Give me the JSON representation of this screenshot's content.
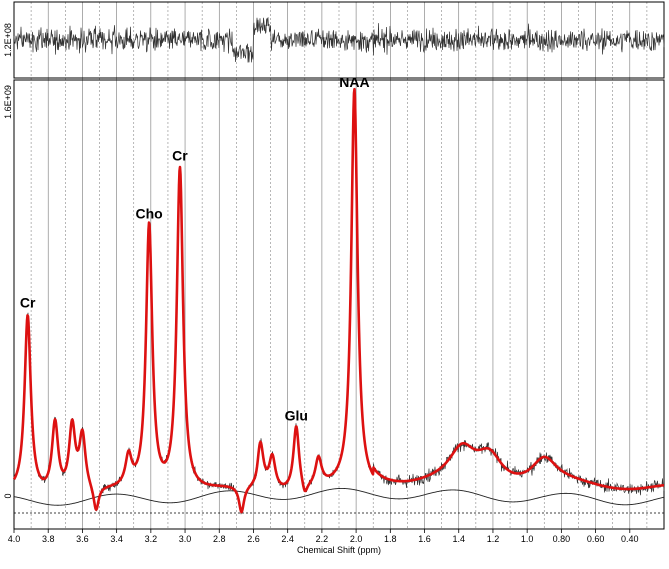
{
  "chart_data": {
    "type": "line",
    "xlabel": "Chemical Shift (ppm)",
    "x_reversed": true,
    "xlim": [
      0.2,
      4.0
    ],
    "x_ticks": [
      "4.0",
      "3.8",
      "3.6",
      "3.4",
      "3.2",
      "3.0",
      "2.8",
      "2.6",
      "2.4",
      "2.2",
      "2.0",
      "1.8",
      "1.6",
      "1.4",
      "1.2",
      "1.0",
      "0.80",
      "0.60",
      "0.40"
    ],
    "x_tick_values": [
      4.0,
      3.8,
      3.6,
      3.4,
      3.2,
      3.0,
      2.8,
      2.6,
      2.4,
      2.2,
      2.0,
      1.8,
      1.6,
      1.4,
      1.2,
      1.0,
      0.8,
      0.6,
      0.4
    ],
    "grid": true,
    "residual_panel": {
      "y_tick_label": "1.2E+08",
      "ylim": [
        -120000000.0,
        120000000.0
      ]
    },
    "main_panel": {
      "y_tick_labels": [
        "1.6E+09",
        "0"
      ],
      "y_tick_values": [
        1600000000.0,
        0
      ],
      "ylim": [
        -110000000.0,
        1660000000.0
      ]
    },
    "series": [
      {
        "name": "",
        "role": "measured spectrum",
        "color": "#333333"
      },
      {
        "name": "",
        "role": "fit",
        "color": "#dd1111"
      },
      {
        "name": "",
        "role": "baseline",
        "color": "#222222"
      }
    ],
    "peaks": [
      {
        "label": "Cr",
        "x": 3.92,
        "y": 700000000.0
      },
      {
        "label": "Cho",
        "x": 3.21,
        "y": 1050000000.0
      },
      {
        "label": "Cr",
        "x": 3.03,
        "y": 1280000000.0
      },
      {
        "label": "Glu",
        "x": 2.35,
        "y": 255000000.0
      },
      {
        "label": "NAA",
        "x": 2.01,
        "y": 1570000000.0
      }
    ],
    "secondary_peaks": [
      {
        "x": 3.76,
        "y": 280000000.0
      },
      {
        "x": 3.66,
        "y": 260000000.0
      },
      {
        "x": 3.6,
        "y": 220000000.0
      },
      {
        "x": 3.33,
        "y": 120000000.0
      },
      {
        "x": 2.56,
        "y": 190000000.0
      },
      {
        "x": 2.49,
        "y": 130000000.0
      },
      {
        "x": 2.22,
        "y": 110000000.0
      },
      {
        "x": 1.38,
        "y": 120000000.0
      },
      {
        "x": 1.22,
        "y": 110000000.0
      },
      {
        "x": 0.9,
        "y": 100000000.0
      }
    ],
    "dips": [
      {
        "x": 3.52,
        "y": -100000000.0
      },
      {
        "x": 2.67,
        "y": -105000000.0
      },
      {
        "x": 2.58,
        "y": -20000000.0
      },
      {
        "x": 2.3,
        "y": -50000000.0
      }
    ]
  }
}
